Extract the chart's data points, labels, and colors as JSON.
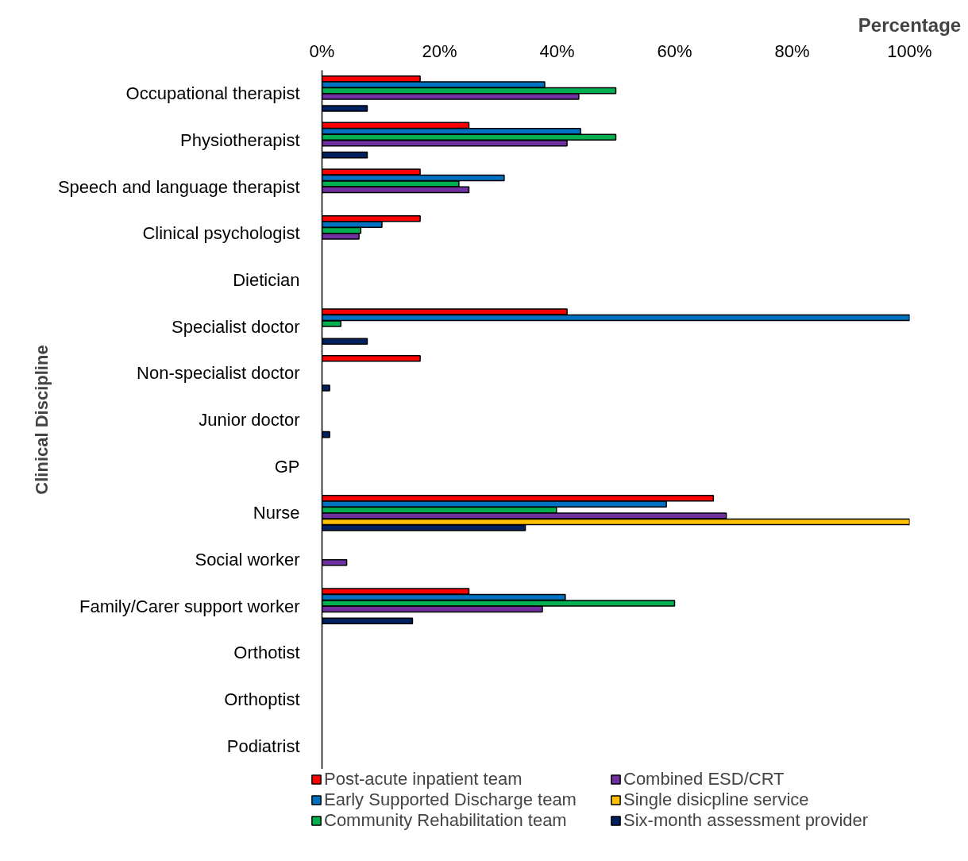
{
  "chart_data": {
    "type": "bar",
    "orientation": "horizontal",
    "xlabel": "Percentage",
    "ylabel": "Clinical Discipline",
    "categories": [
      "Occupational therapist",
      "Physiotherapist",
      "Speech and language therapist",
      "Clinical psychologist",
      "Dietician",
      "Specialist doctor",
      "Non-specialist doctor",
      "Junior doctor",
      "GP",
      "Nurse",
      "Social worker",
      "Family/Carer support worker",
      "Orthotist",
      "Orthoptist",
      "Podiatrist"
    ],
    "series": [
      {
        "name": "Post-acute inpatient team",
        "color": "#ff0000",
        "values": [
          16.7,
          25.0,
          16.7,
          16.7,
          null,
          41.7,
          16.7,
          null,
          null,
          66.6,
          null,
          25.0,
          null,
          null,
          null
        ]
      },
      {
        "name": "Early Supported Discharge team",
        "color": "#0070c0",
        "values": [
          37.9,
          44.0,
          31.0,
          10.2,
          null,
          100,
          null,
          null,
          null,
          58.6,
          null,
          41.4,
          null,
          null,
          null
        ]
      },
      {
        "name": "Community Rehabilitation team",
        "color": "#00b050",
        "values": [
          50.0,
          50.0,
          23.3,
          6.6,
          null,
          3.2,
          null,
          null,
          null,
          39.9,
          null,
          60.0,
          null,
          null,
          null
        ]
      },
      {
        "name": "Combined ESD/CRT",
        "color": "#7030a0",
        "values": [
          43.7,
          41.7,
          25.0,
          6.3,
          null,
          null,
          null,
          null,
          null,
          68.8,
          4.2,
          37.5,
          null,
          null,
          null
        ]
      },
      {
        "name": "Single disicpline service",
        "color": "#ffc000",
        "values": [
          null,
          null,
          null,
          null,
          null,
          null,
          null,
          null,
          null,
          100,
          null,
          null,
          null,
          null,
          null
        ]
      },
      {
        "name": "Six-month assessment provider",
        "color": "#002060",
        "values": [
          7.7,
          7.7,
          null,
          null,
          null,
          7.7,
          1.3,
          1.3,
          null,
          34.6,
          null,
          15.4,
          null,
          null,
          null
        ]
      }
    ],
    "xlim": [
      0,
      100
    ],
    "xticks": [
      {
        "value": 0,
        "label": "0%"
      },
      {
        "value": 20,
        "label": "20%"
      },
      {
        "value": 40,
        "label": "40%"
      },
      {
        "value": 60,
        "label": "60%"
      },
      {
        "value": 80,
        "label": "80%"
      },
      {
        "value": 100,
        "label": "100%"
      }
    ],
    "grid": false,
    "legend": "bottom"
  }
}
